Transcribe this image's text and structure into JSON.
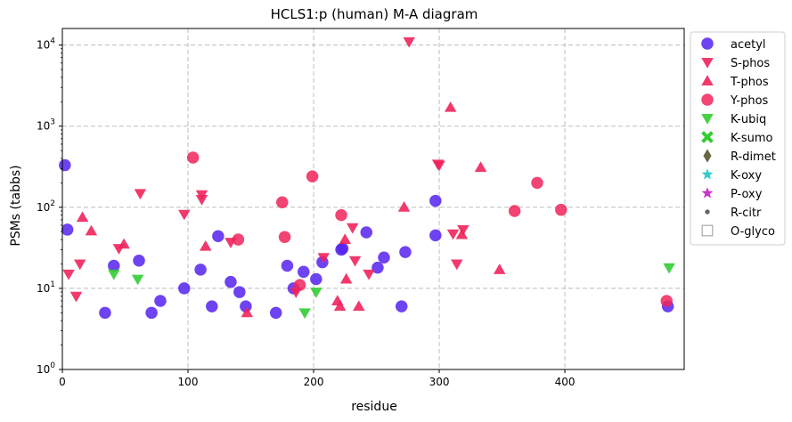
{
  "chart_data": {
    "type": "scatter",
    "title": "HCLS1:p (human) M-A diagram",
    "xlabel": "residue",
    "ylabel": "PSMs (tabbs)",
    "xlim": [
      0,
      495
    ],
    "ylim": [
      1,
      16000
    ],
    "yscale": "log",
    "grid": true,
    "legend_position": "outside-right",
    "x_ticks": [
      0,
      100,
      200,
      300,
      400
    ],
    "y_ticks": [
      {
        "value": 1,
        "base": "10",
        "exp": "0"
      },
      {
        "value": 10,
        "base": "10",
        "exp": "1"
      },
      {
        "value": 100,
        "base": "10",
        "exp": "2"
      },
      {
        "value": 1000,
        "base": "10",
        "exp": "3"
      },
      {
        "value": 10000,
        "base": "10",
        "exp": "4"
      }
    ],
    "series": [
      {
        "name": "acetyl",
        "marker": "circle",
        "color": "#5522ee",
        "points": [
          [
            2,
            330
          ],
          [
            4,
            53
          ],
          [
            34,
            5
          ],
          [
            41,
            19
          ],
          [
            61,
            22
          ],
          [
            71,
            5
          ],
          [
            78,
            7
          ],
          [
            97,
            10
          ],
          [
            110,
            17
          ],
          [
            119,
            6
          ],
          [
            124,
            44
          ],
          [
            134,
            12
          ],
          [
            141,
            9
          ],
          [
            146,
            6
          ],
          [
            170,
            5
          ],
          [
            179,
            19
          ],
          [
            184,
            10
          ],
          [
            192,
            16
          ],
          [
            202,
            13
          ],
          [
            207,
            21
          ],
          [
            222,
            30
          ],
          [
            223,
            31
          ],
          [
            242,
            49
          ],
          [
            251,
            18
          ],
          [
            256,
            24
          ],
          [
            270,
            6
          ],
          [
            273,
            28
          ],
          [
            297,
            45
          ],
          [
            297,
            120
          ],
          [
            482,
            6
          ]
        ]
      },
      {
        "name": "S-phos",
        "marker": "triangle-down",
        "color": "#f0245c",
        "points": [
          [
            5,
            15
          ],
          [
            11,
            8
          ],
          [
            14,
            20
          ],
          [
            45,
            31
          ],
          [
            62,
            148
          ],
          [
            97,
            82
          ],
          [
            111,
            143
          ],
          [
            111,
            125
          ],
          [
            134,
            37
          ],
          [
            186,
            9
          ],
          [
            208,
            24
          ],
          [
            231,
            56
          ],
          [
            233,
            22
          ],
          [
            244,
            15
          ],
          [
            276,
            11000
          ],
          [
            299,
            340
          ],
          [
            300,
            330
          ],
          [
            311,
            47
          ],
          [
            314,
            20
          ],
          [
            319,
            53
          ]
        ]
      },
      {
        "name": "T-phos",
        "marker": "triangle-up",
        "color": "#f0245c",
        "points": [
          [
            16,
            75
          ],
          [
            23,
            51
          ],
          [
            49,
            35
          ],
          [
            114,
            33
          ],
          [
            147,
            5
          ],
          [
            219,
            7
          ],
          [
            221,
            6
          ],
          [
            225,
            40
          ],
          [
            226,
            13
          ],
          [
            236,
            6
          ],
          [
            272,
            100
          ],
          [
            309,
            1700
          ],
          [
            318,
            46
          ],
          [
            333,
            310
          ],
          [
            348,
            17
          ]
        ]
      },
      {
        "name": "Y-phos",
        "marker": "circle",
        "color": "#f0245c",
        "points": [
          [
            104,
            410
          ],
          [
            140,
            40
          ],
          [
            175,
            115
          ],
          [
            177,
            43
          ],
          [
            189,
            11
          ],
          [
            199,
            240
          ],
          [
            222,
            80
          ],
          [
            360,
            90
          ],
          [
            378,
            200
          ],
          [
            397,
            93
          ],
          [
            481,
            7
          ]
        ]
      },
      {
        "name": "K-ubiq",
        "marker": "triangle-down",
        "color": "#33cc33",
        "points": [
          [
            41,
            15
          ],
          [
            60,
            13
          ],
          [
            193,
            5
          ],
          [
            202,
            9
          ],
          [
            483,
            18
          ]
        ]
      },
      {
        "name": "K-sumo",
        "marker": "x",
        "color": "#33cc33",
        "points": []
      },
      {
        "name": "R-dimet",
        "marker": "diamond",
        "color": "#666644",
        "points": []
      },
      {
        "name": "K-oxy",
        "marker": "star",
        "color": "#33cccc",
        "points": []
      },
      {
        "name": "P-oxy",
        "marker": "star",
        "color": "#cc33cc",
        "points": []
      },
      {
        "name": "R-citr",
        "marker": "dot",
        "color": "#666666",
        "points": []
      },
      {
        "name": "O-glyco",
        "marker": "square-open",
        "color": "#999999",
        "points": []
      }
    ]
  }
}
